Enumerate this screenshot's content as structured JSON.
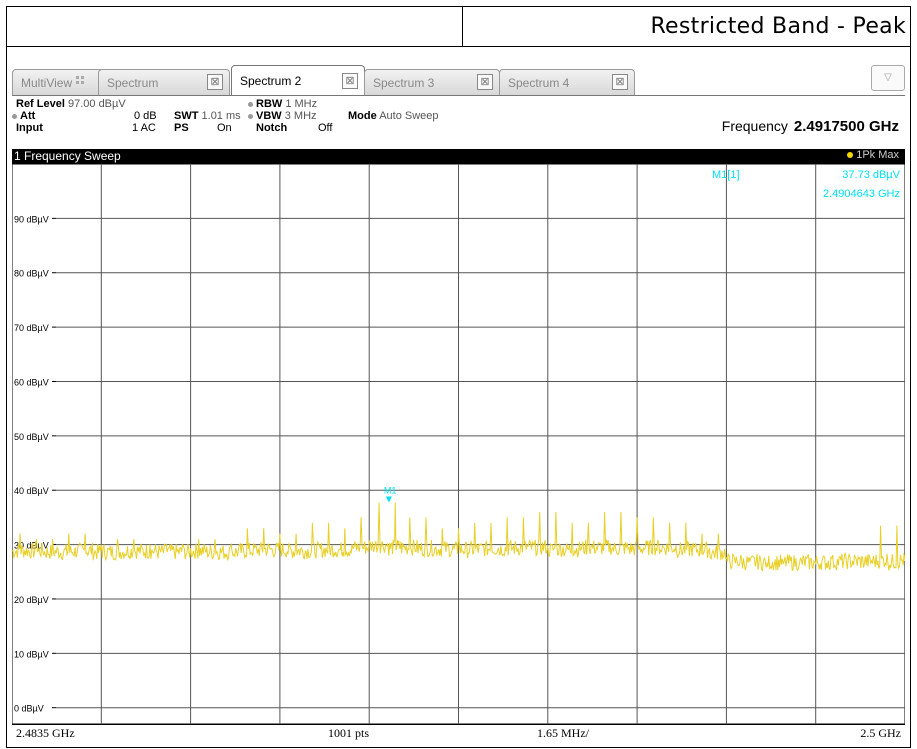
{
  "doc": {
    "title": "Restricted Band - Peak"
  },
  "tabs": [
    {
      "label": "MultiView"
    },
    {
      "label": "Spectrum"
    },
    {
      "label": "Spectrum 2"
    },
    {
      "label": "Spectrum 3"
    },
    {
      "label": "Spectrum 4"
    }
  ],
  "icons": {
    "close": "close-icon",
    "dropdown": "chevron-down-icon",
    "grip": "grid-icon"
  },
  "settings": {
    "ref_level_label": "Ref Level",
    "ref_level_value": "97.00 dBµV",
    "att_label": "Att",
    "att_value": "0 dB",
    "swt_label": "SWT",
    "swt_value": "1.01 ms",
    "input_label": "Input",
    "input_value": "1 AC",
    "ps_label": "PS",
    "ps_value": "On",
    "rbw_label": "RBW",
    "rbw_value": "1 MHz",
    "vbw_label": "VBW",
    "vbw_value": "3 MHz",
    "notch_label": "Notch",
    "notch_value": "Off",
    "mode_label": "Mode",
    "mode_value": "Auto Sweep",
    "frequency_label": "Frequency",
    "frequency_value": "2.4917500 GHz"
  },
  "diagram": {
    "title": "1 Frequency Sweep",
    "trace_label": "1Pk Max"
  },
  "marker": {
    "name": "M1[1]",
    "level": "37.73 dBµV",
    "frequency": "2.4904643 GHz",
    "flag": "M1"
  },
  "footer": {
    "start": "2.4835 GHz",
    "points": "1001 pts",
    "span_per_div": "1.65 MHz/",
    "stop": "2.5 GHz"
  },
  "colors": {
    "trace": "#e8d028",
    "marker": "#00e0f0",
    "grid": "#555555",
    "title_bar": "#000000"
  },
  "chart_data": {
    "type": "line",
    "xlim": [
      2.4835,
      2.5
    ],
    "ylim": [
      -3,
      100
    ],
    "y_ticks": [
      0,
      10,
      20,
      30,
      40,
      50,
      60,
      70,
      80,
      90
    ],
    "y_tick_labels": [
      "0 dBµV",
      "10 dBµV",
      "20 dBµV",
      "30 dBµV",
      "40 dBµV",
      "50 dBµV",
      "60 dBµV",
      "70 dBµV",
      "80 dBµV",
      "90 dBµV"
    ],
    "grid": true,
    "series": [
      {
        "x": [
          2.4835,
          2.4838,
          2.4841,
          2.4844,
          2.4847,
          2.485,
          2.4853,
          2.4856,
          2.4859,
          2.4862,
          2.4865,
          2.4868,
          2.4871,
          2.4874,
          2.4877,
          2.488,
          2.4883,
          2.4886,
          2.4889,
          2.4892,
          2.4895,
          2.4898,
          2.4901,
          2.4904643,
          2.4907,
          2.491,
          2.4913,
          2.4916,
          2.4919,
          2.4922,
          2.4925,
          2.4928,
          2.4931,
          2.4934,
          2.4937,
          2.494,
          2.4943,
          2.4946,
          2.4949,
          2.4952,
          2.4955,
          2.4958,
          2.4961,
          2.4964,
          2.4967,
          2.497,
          2.4973,
          2.4976,
          2.4979,
          2.4982,
          2.4985,
          2.4988,
          2.4991,
          2.4994,
          2.4997,
          2.5
        ],
        "y": [
          32,
          30,
          31,
          29,
          32,
          30,
          29,
          31,
          30,
          30,
          29,
          30,
          31,
          29,
          30,
          33,
          31,
          32,
          30,
          34,
          31,
          33,
          35,
          37.73,
          33,
          35,
          32,
          33,
          31,
          34,
          32,
          35,
          33,
          36,
          31,
          34,
          33,
          36,
          32,
          35,
          33,
          34,
          31,
          32,
          28,
          29,
          27,
          28,
          27,
          28,
          27,
          29,
          28,
          28,
          35,
          27
        ]
      }
    ]
  }
}
